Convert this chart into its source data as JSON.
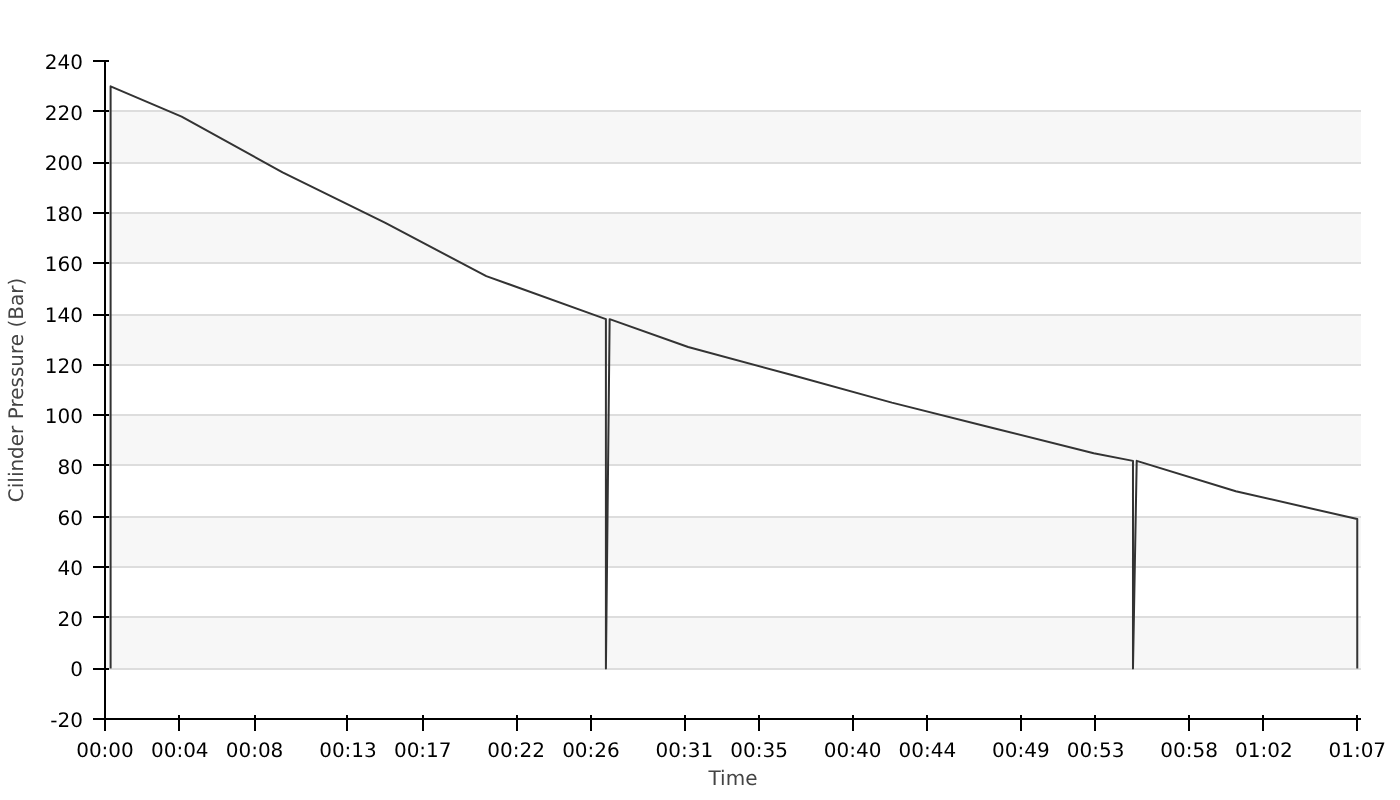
{
  "chart_data": {
    "type": "line",
    "xlabel": "Time",
    "ylabel": "Cilinder Pressure (Bar)",
    "x": [
      0.3,
      0.3,
      4.1,
      9.5,
      15.0,
      20.4,
      26.8,
      26.8,
      27.0,
      31.2,
      36.7,
      42.1,
      47.5,
      52.9,
      55.0,
      55.0,
      55.2,
      60.5,
      67.0,
      67.0
    ],
    "series": [
      {
        "color": "#333333",
        "values": [
          0,
          230,
          218,
          196,
          176,
          155,
          138,
          0,
          138,
          127,
          116,
          105,
          95,
          85,
          82,
          0,
          82,
          70,
          59,
          0
        ]
      }
    ],
    "xlim": [
      0,
      67.2
    ],
    "ylim": [
      -20,
      240
    ],
    "xticks": [
      {
        "value": 0,
        "label": "00:00"
      },
      {
        "value": 4,
        "label": "00:04"
      },
      {
        "value": 8,
        "label": "00:08"
      },
      {
        "value": 13,
        "label": "00:13"
      },
      {
        "value": 17,
        "label": "00:17"
      },
      {
        "value": 22,
        "label": "00:22"
      },
      {
        "value": 26,
        "label": "00:26"
      },
      {
        "value": 31,
        "label": "00:31"
      },
      {
        "value": 35,
        "label": "00:35"
      },
      {
        "value": 40,
        "label": "00:40"
      },
      {
        "value": 44,
        "label": "00:44"
      },
      {
        "value": 49,
        "label": "00:49"
      },
      {
        "value": 53,
        "label": "00:53"
      },
      {
        "value": 58,
        "label": "00:58"
      },
      {
        "value": 62,
        "label": "01:02"
      },
      {
        "value": 67,
        "label": "01:07"
      }
    ],
    "yticks": [
      -20,
      0,
      20,
      40,
      60,
      80,
      100,
      120,
      140,
      160,
      180,
      200,
      220,
      240
    ],
    "grid": "y",
    "line_style": "solid"
  }
}
